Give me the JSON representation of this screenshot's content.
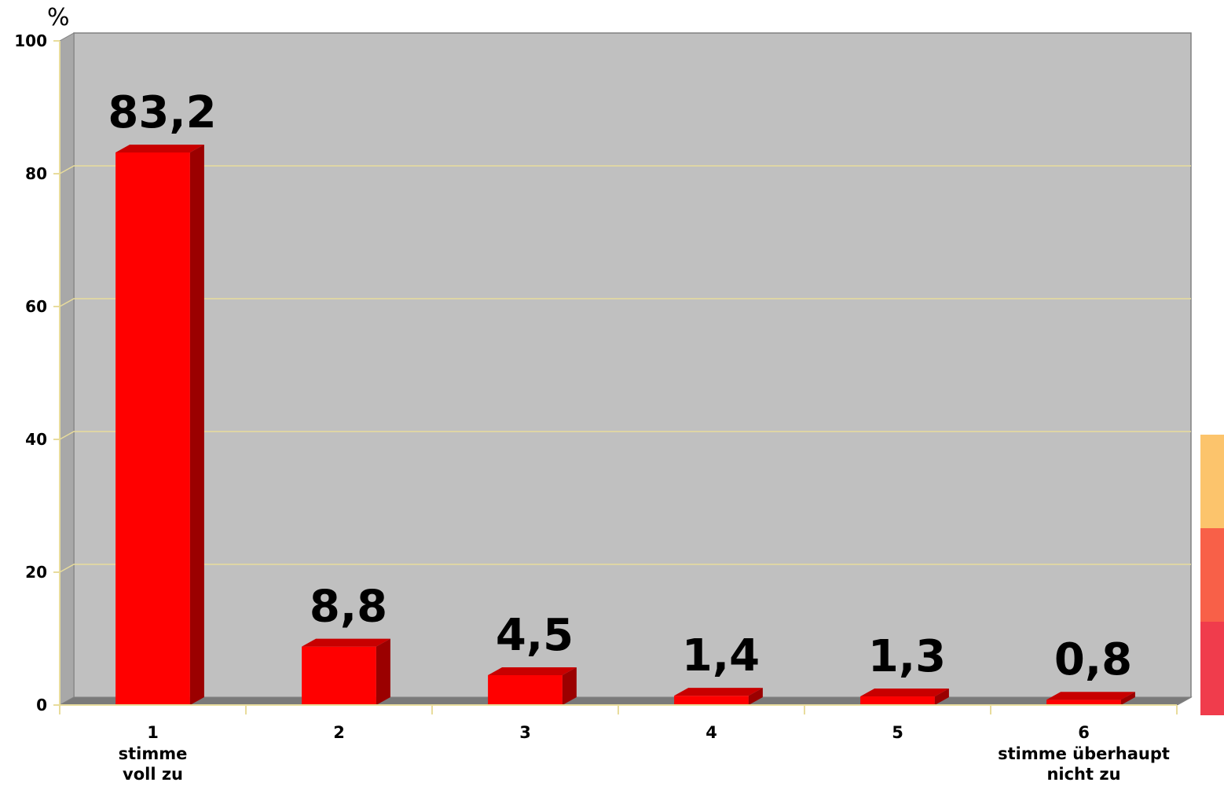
{
  "chart_data": {
    "type": "bar",
    "categories": [
      "1",
      "2",
      "3",
      "4",
      "5",
      "6"
    ],
    "category_sublabels": [
      [
        "stimme",
        "voll zu"
      ],
      [],
      [],
      [],
      [],
      [
        "stimme überhaupt",
        "nicht zu"
      ]
    ],
    "values": [
      83.2,
      8.8,
      4.5,
      1.4,
      1.3,
      0.8
    ],
    "value_labels": [
      "83,2",
      "8,8",
      "4,5",
      "1,4",
      "1,3",
      "0,8"
    ],
    "y_unit_label": "%",
    "y_ticks": [
      "0",
      "20",
      "40",
      "60",
      "80",
      "100"
    ],
    "ylim": [
      0,
      100
    ],
    "title": "",
    "xlabel": "",
    "ylabel": "",
    "grid": true,
    "style": "3d-bar",
    "colors": {
      "plot_background": "#c0c0c0",
      "bar_front": "#ff0000",
      "bar_side": "#9b0000",
      "bar_top": "#c80000",
      "gridline": "#e8dc9c",
      "axis": "#808080"
    }
  },
  "edge_decoration_colors": [
    "#fcc46c",
    "#f86048",
    "#f03c4c"
  ]
}
